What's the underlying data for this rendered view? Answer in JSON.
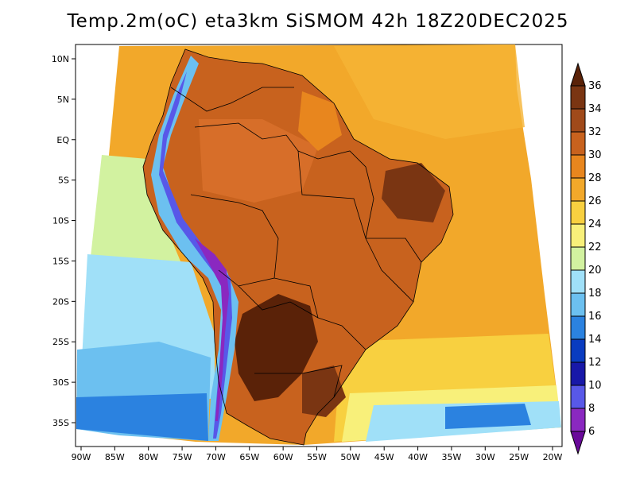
{
  "title": "Temp.2m(oC) eta3km SiSMOM 42h 18Z20DEC2025",
  "map": {
    "lon_ticks": [
      "90W",
      "85W",
      "80W",
      "75W",
      "70W",
      "65W",
      "60W",
      "55W",
      "50W",
      "45W",
      "40W",
      "35W",
      "30W",
      "25W",
      "20W"
    ],
    "lat_ticks": [
      "10N",
      "5N",
      "EQ",
      "5S",
      "10S",
      "15S",
      "20S",
      "25S",
      "30S",
      "35S"
    ]
  },
  "colorbar": {
    "labels": [
      "36",
      "34",
      "32",
      "30",
      "28",
      "26",
      "24",
      "22",
      "20",
      "18",
      "16",
      "14",
      "12",
      "10",
      "8",
      "6"
    ],
    "colors": [
      "#5a2208",
      "#7a3512",
      "#a04a1a",
      "#c8621e",
      "#e8861e",
      "#f2a82a",
      "#f8d040",
      "#f8f07a",
      "#d2f2a0",
      "#a0e0f8",
      "#6cc0f0",
      "#2b82e0",
      "#0a3cc0",
      "#1818a8",
      "#5858e8",
      "#8a28c0",
      "#6a0a9a"
    ]
  },
  "palette": {
    "hot": "#7a3512",
    "warm": "#c8621e",
    "ocean_warm": "#f2a82a",
    "ocean_mid": "#f8d040",
    "ocean_cool": "#6cc0f0",
    "ocean_cold": "#2b82e0",
    "andes": "#5858e8"
  }
}
